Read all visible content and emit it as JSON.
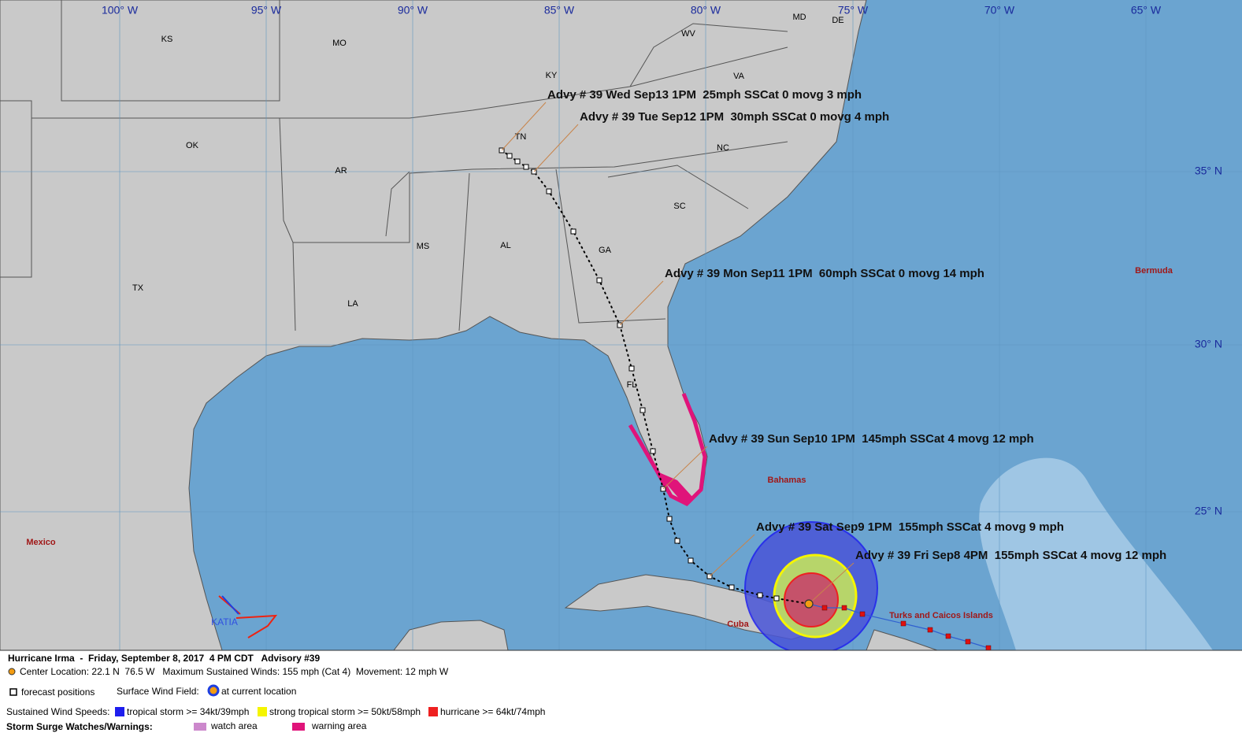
{
  "map": {
    "longitude_labels": [
      "100° W",
      "95° W",
      "90° W",
      "85° W",
      "80° W",
      "75° W",
      "70° W",
      "65° W"
    ],
    "latitude_labels": [
      "35° N",
      "30° N",
      "25° N"
    ],
    "state_labels": [
      "KS",
      "MO",
      "KY",
      "WV",
      "VA",
      "MD",
      "DE",
      "TN",
      "NC",
      "OK",
      "AR",
      "SC",
      "MS",
      "AL",
      "GA",
      "TX",
      "LA",
      "FL"
    ],
    "place_labels": [
      "Mexico",
      "Bahamas",
      "Cuba",
      "Turks and Caicos Islands",
      "Bermuda"
    ],
    "other_storm": "KATIA",
    "advisories": [
      "Advy # 39 Wed Sep13 1PM  25mph SSCat 0 movg 3 mph",
      "Advy # 39 Tue Sep12 1PM  30mph SSCat 0 movg 4 mph",
      "Advy # 39 Mon Sep11 1PM  60mph SSCat 0 movg 14 mph",
      "Advy # 39 Sun Sep10 1PM  145mph SSCat 4 movg 12 mph",
      "Advy # 39 Sat Sep9 1PM  155mph SSCat 4 movg 9 mph",
      "Advy # 39 Fri Sep8 4PM  155mph SSCat 4 movg 12 mph"
    ]
  },
  "legend": {
    "title": "Hurricane Irma  -  Friday, September 8, 2017  4 PM CDT   Advisory #39",
    "center": "Center Location: 22.1 N  76.5 W   Maximum Sustained Winds: 155 mph (Cat 4)  Movement: 12 mph W",
    "forecast_positions": "forecast positions",
    "wind_field_label": "Surface Wind Field:",
    "current_location": "at current location",
    "wind_speeds_label": "Sustained Wind Speeds:",
    "tropical_storm": "tropical storm >= 34kt/39mph",
    "strong_tropical_storm": "strong tropical storm >= 50kt/58mph",
    "hurricane": "hurricane >= 64kt/74mph",
    "surge_label": "Storm Surge Watches/Warnings:",
    "watch": "watch area",
    "warning": "warning area"
  }
}
